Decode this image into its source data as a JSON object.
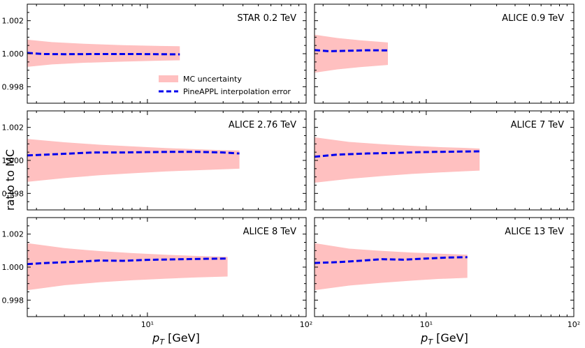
{
  "figure": {
    "ylabel": "ratio to MC",
    "xlabel_main": "p",
    "xlabel_sub": "T",
    "xlabel_unit": " [GeV]",
    "legend": {
      "band_label": "MC uncertainty",
      "line_label": "PineAPPL interpolation error",
      "placement": "lower-right of first panel"
    },
    "colors": {
      "band": "#ffc0c0",
      "line": "#0000ee",
      "frame": "#000000"
    }
  },
  "chart_data": [
    {
      "type": "area",
      "title": "STAR 0.2 TeV",
      "xscale": "log",
      "xlim": [
        1.75,
        100
      ],
      "ylim": [
        0.997,
        1.003
      ],
      "x_ticks": [
        10,
        100
      ],
      "x_tick_labels": [
        "10¹",
        "10²"
      ],
      "y_ticks": [
        0.998,
        1.0,
        1.002
      ],
      "y_tick_labels": [
        "0.998",
        "1.000",
        "1.002"
      ],
      "show_x_tick_labels": false,
      "show_y_tick_labels": true,
      "series": [
        {
          "name": "MC uncertainty",
          "kind": "band",
          "x": [
            1.75,
            2.5,
            4,
            7,
            12,
            16
          ],
          "lower": [
            0.9992,
            0.99935,
            0.99945,
            0.99952,
            0.99958,
            0.9996
          ],
          "upper": [
            1.00085,
            1.0007,
            1.0006,
            1.00052,
            1.00047,
            1.00045
          ]
        },
        {
          "name": "PineAPPL interpolation error",
          "kind": "line",
          "x": [
            1.75,
            2.2,
            3,
            5,
            8,
            12,
            16
          ],
          "values": [
            1.00005,
            0.99998,
            0.99997,
            0.99998,
            0.99998,
            0.99997,
            0.99996
          ]
        }
      ]
    },
    {
      "type": "area",
      "title": "ALICE 0.9 TeV",
      "xscale": "log",
      "xlim": [
        1.75,
        100
      ],
      "ylim": [
        0.997,
        1.003
      ],
      "x_ticks": [
        10,
        100
      ],
      "x_tick_labels": [
        "10¹",
        "10²"
      ],
      "y_ticks": [
        0.998,
        1.0,
        1.002
      ],
      "y_tick_labels": [
        "0.998",
        "1.000",
        "1.002"
      ],
      "show_x_tick_labels": false,
      "show_y_tick_labels": false,
      "series": [
        {
          "name": "MC uncertainty",
          "kind": "band",
          "x": [
            1.75,
            2.5,
            3.5,
            5.5
          ],
          "lower": [
            0.99885,
            0.99905,
            0.99918,
            0.99932
          ],
          "upper": [
            1.00115,
            1.00095,
            1.00082,
            1.00068
          ]
        },
        {
          "name": "PineAPPL interpolation error",
          "kind": "line",
          "x": [
            1.75,
            2.2,
            3,
            4,
            5.5
          ],
          "values": [
            1.00022,
            1.00015,
            1.00018,
            1.00021,
            1.0002
          ]
        }
      ]
    },
    {
      "type": "area",
      "title": "ALICE 2.76 TeV",
      "xscale": "log",
      "xlim": [
        1.75,
        100
      ],
      "ylim": [
        0.997,
        1.003
      ],
      "x_ticks": [
        10,
        100
      ],
      "x_tick_labels": [
        "10¹",
        "10²"
      ],
      "y_ticks": [
        0.998,
        1.0,
        1.002
      ],
      "y_tick_labels": [
        "0.998",
        "1.000",
        "1.002"
      ],
      "show_x_tick_labels": false,
      "show_y_tick_labels": true,
      "series": [
        {
          "name": "MC uncertainty",
          "kind": "band",
          "x": [
            1.75,
            3,
            5,
            8,
            13,
            20,
            30,
            38
          ],
          "lower": [
            0.9987,
            0.99893,
            0.9991,
            0.99922,
            0.99933,
            0.9994,
            0.99946,
            0.9995
          ],
          "upper": [
            1.0013,
            1.0011,
            1.00095,
            1.00085,
            1.00075,
            1.00068,
            1.00062,
            1.0006
          ]
        },
        {
          "name": "PineAPPL interpolation error",
          "kind": "line",
          "x": [
            1.75,
            3,
            4.5,
            7,
            10,
            15,
            20,
            30,
            38
          ],
          "values": [
            1.0003,
            1.0004,
            1.00048,
            1.00048,
            1.0005,
            1.00052,
            1.00052,
            1.00048,
            1.00042
          ]
        }
      ]
    },
    {
      "type": "area",
      "title": "ALICE 7 TeV",
      "xscale": "log",
      "xlim": [
        1.75,
        100
      ],
      "ylim": [
        0.997,
        1.003
      ],
      "x_ticks": [
        10,
        100
      ],
      "x_tick_labels": [
        "10¹",
        "10²"
      ],
      "y_ticks": [
        0.998,
        1.0,
        1.002
      ],
      "y_tick_labels": [
        "0.998",
        "1.000",
        "1.002"
      ],
      "show_x_tick_labels": false,
      "show_y_tick_labels": false,
      "series": [
        {
          "name": "MC uncertainty",
          "kind": "band",
          "x": [
            1.75,
            3,
            5,
            8,
            13,
            18,
            23
          ],
          "lower": [
            0.99865,
            0.99888,
            0.99905,
            0.99918,
            0.99928,
            0.99934,
            0.99938
          ],
          "upper": [
            1.0014,
            1.00112,
            1.00098,
            1.00088,
            1.0008,
            1.00076,
            1.00072
          ]
        },
        {
          "name": "PineAPPL interpolation error",
          "kind": "line",
          "x": [
            1.75,
            2.5,
            4,
            6,
            9,
            13,
            18,
            23
          ],
          "values": [
            1.00022,
            1.00035,
            1.00042,
            1.00045,
            1.0005,
            1.00052,
            1.00054,
            1.00055
          ]
        }
      ]
    },
    {
      "type": "area",
      "title": "ALICE 8 TeV",
      "xscale": "log",
      "xlim": [
        1.75,
        100
      ],
      "ylim": [
        0.997,
        1.003
      ],
      "x_ticks": [
        10,
        100
      ],
      "x_tick_labels": [
        "10¹",
        "10²"
      ],
      "y_ticks": [
        0.998,
        1.0,
        1.002
      ],
      "y_tick_labels": [
        "0.998",
        "1.000",
        "1.002"
      ],
      "show_x_tick_labels": true,
      "show_y_tick_labels": true,
      "series": [
        {
          "name": "MC uncertainty",
          "kind": "band",
          "x": [
            1.75,
            3,
            5,
            8,
            13,
            20,
            32
          ],
          "lower": [
            0.9986,
            0.9989,
            0.99908,
            0.9992,
            0.9993,
            0.99937,
            0.99943
          ],
          "upper": [
            1.00145,
            1.00115,
            1.00097,
            1.00085,
            1.00075,
            1.00068,
            1.00062
          ]
        },
        {
          "name": "PineAPPL interpolation error",
          "kind": "line",
          "x": [
            1.75,
            2.3,
            3.5,
            5,
            7,
            10,
            15,
            22,
            32
          ],
          "values": [
            1.00018,
            1.00025,
            1.00032,
            1.0004,
            1.00038,
            1.00044,
            1.00047,
            1.0005,
            1.00052
          ]
        }
      ]
    },
    {
      "type": "area",
      "title": "ALICE 13 TeV",
      "xscale": "log",
      "xlim": [
        1.75,
        100
      ],
      "ylim": [
        0.997,
        1.003
      ],
      "x_ticks": [
        10,
        100
      ],
      "x_tick_labels": [
        "10¹",
        "10²"
      ],
      "y_ticks": [
        0.998,
        1.0,
        1.002
      ],
      "y_tick_labels": [
        "0.998",
        "1.000",
        "1.002"
      ],
      "show_x_tick_labels": true,
      "show_y_tick_labels": false,
      "series": [
        {
          "name": "MC uncertainty",
          "kind": "band",
          "x": [
            1.75,
            3,
            5,
            8,
            12,
            19
          ],
          "lower": [
            0.9986,
            0.99888,
            0.99905,
            0.99918,
            0.99928,
            0.99935
          ],
          "upper": [
            1.00145,
            1.00112,
            1.00098,
            1.00088,
            1.00082,
            1.00075
          ]
        },
        {
          "name": "PineAPPL interpolation error",
          "kind": "line",
          "x": [
            1.75,
            2.5,
            3.5,
            5,
            7,
            10,
            14,
            19
          ],
          "values": [
            1.00025,
            1.0003,
            1.00038,
            1.00048,
            1.00045,
            1.00052,
            1.00058,
            1.0006
          ]
        }
      ]
    }
  ]
}
